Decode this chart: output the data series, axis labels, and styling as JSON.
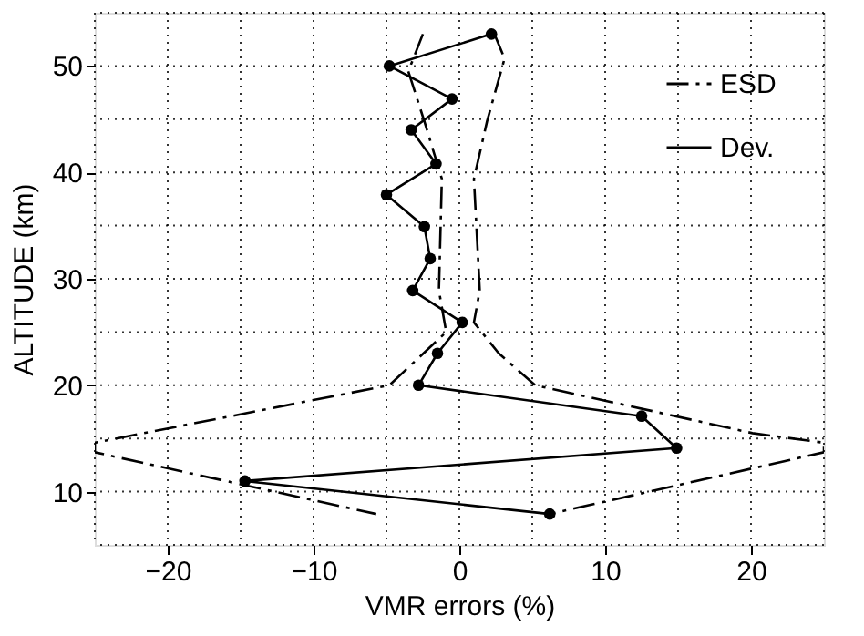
{
  "chart_data": {
    "type": "line",
    "xlabel": "VMR errors (%)",
    "ylabel": "ALTITUDE (km)",
    "xlim": [
      -25,
      25
    ],
    "ylim": [
      5,
      55
    ],
    "xticks": [
      {
        "value": -25,
        "label": null
      },
      -20,
      {
        "value": -15,
        "label": null
      },
      -10,
      {
        "value": -5,
        "label": null
      },
      0,
      {
        "value": 5,
        "label": null
      },
      10,
      {
        "value": 15,
        "label": null
      },
      20,
      {
        "value": 25,
        "label": null
      }
    ],
    "yticks": [
      {
        "value": 5,
        "label": null
      },
      10,
      {
        "value": 15,
        "label": null
      },
      20,
      {
        "value": 25,
        "label": null
      },
      30,
      {
        "value": 35,
        "label": null
      },
      40,
      {
        "value": 45,
        "label": null
      },
      50,
      {
        "value": 55,
        "label": null
      }
    ],
    "grid": true,
    "legend": "top right",
    "series": [
      {
        "name": "ESD",
        "color": "#000000",
        "line_style": "dashdot",
        "marker": "none",
        "x": [
          -2.5,
          -3.5,
          -2.4,
          -1.2,
          -1.4,
          -0.9,
          -4.8,
          -25,
          -25,
          -5.7,
          null,
          2.4,
          3.1,
          1.9,
          1.0,
          1.4,
          1.0,
          2.7,
          5.2,
          20.1,
          25,
          25,
          6.2
        ],
        "values": [
          53,
          49.5,
          44.8,
          39.4,
          28.9,
          25,
          20,
          14.6,
          13.7,
          7.9,
          null,
          53,
          50.7,
          44.8,
          39.4,
          28.9,
          25.9,
          23,
          20,
          15.5,
          14.6,
          13.7,
          7.9
        ]
      },
      {
        "name": "Dev.",
        "color": "#000000",
        "line_style": "solid",
        "marker": "circle",
        "x": [
          2.2,
          -4.8,
          -0.5,
          -3.3,
          -1.6,
          -5.0,
          -2.4,
          -2.0,
          -3.2,
          0.2,
          -1.5,
          -2.8,
          12.5,
          14.9,
          -14.7,
          6.2
        ],
        "values": [
          53.0,
          50.0,
          46.9,
          44.0,
          40.8,
          37.9,
          34.9,
          31.9,
          28.9,
          25.9,
          23.0,
          20.0,
          17.1,
          14.1,
          11.0,
          7.9
        ]
      }
    ]
  }
}
